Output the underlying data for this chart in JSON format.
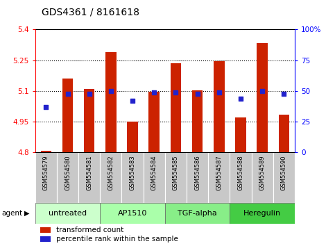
{
  "title": "GDS4361 / 8161618",
  "samples": [
    "GSM554579",
    "GSM554580",
    "GSM554581",
    "GSM554582",
    "GSM554583",
    "GSM554584",
    "GSM554585",
    "GSM554586",
    "GSM554587",
    "GSM554588",
    "GSM554589",
    "GSM554590"
  ],
  "transformed_counts": [
    4.81,
    5.16,
    5.11,
    5.29,
    4.95,
    5.095,
    5.235,
    5.105,
    5.245,
    4.97,
    5.335,
    4.985
  ],
  "percentile_ranks": [
    37,
    48,
    48,
    50,
    42,
    49,
    49,
    48,
    49,
    44,
    50,
    48
  ],
  "bar_bottom": 4.8,
  "ylim": [
    4.8,
    5.4
  ],
  "yticks_left": [
    4.8,
    4.95,
    5.1,
    5.25,
    5.4
  ],
  "yticks_right": [
    0,
    25,
    50,
    75,
    100
  ],
  "percentile_ylim": [
    0,
    100
  ],
  "bar_color": "#cc2200",
  "dot_color": "#2222cc",
  "bar_width": 0.5,
  "agents": [
    {
      "label": "untreated",
      "start": 0,
      "end": 3,
      "color": "#ccffcc"
    },
    {
      "label": "AP1510",
      "start": 3,
      "end": 6,
      "color": "#aaffaa"
    },
    {
      "label": "TGF-alpha",
      "start": 6,
      "end": 9,
      "color": "#88ee88"
    },
    {
      "label": "Heregulin",
      "start": 9,
      "end": 12,
      "color": "#44cc44"
    }
  ],
  "legend_bar_label": "transformed count",
  "legend_dot_label": "percentile rank within the sample",
  "agent_label": "agent",
  "title_fontsize": 10,
  "tick_fontsize": 7.5,
  "label_fontsize": 7,
  "legend_fontsize": 7.5,
  "sample_fontsize": 6,
  "agent_fontsize": 8
}
